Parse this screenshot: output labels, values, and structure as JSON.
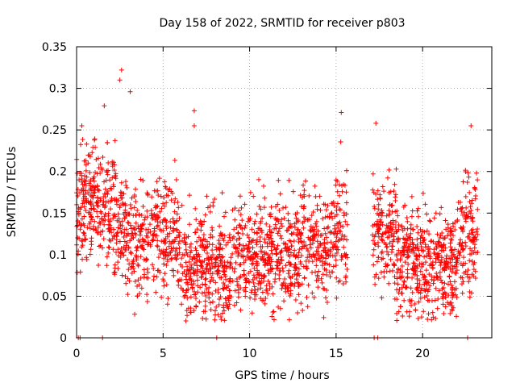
{
  "chart_data": {
    "type": "scatter",
    "title": "Day 158 of 2022, SRMTID for receiver p803",
    "xlabel": "GPS time / hours",
    "ylabel": "SRMTID / TECUs",
    "xlim": [
      0,
      24
    ],
    "ylim": [
      0,
      0.35
    ],
    "x_ticks": [
      0,
      5,
      10,
      15,
      20
    ],
    "x_tick_labels": [
      "0",
      "5",
      "10",
      "15",
      "20"
    ],
    "y_ticks": [
      0,
      0.05,
      0.1,
      0.15,
      0.2,
      0.25,
      0.3,
      0.35
    ],
    "y_tick_labels": [
      "0",
      "0.05",
      "0.1",
      "0.15",
      "0.2",
      "0.25",
      "0.3",
      "0.35"
    ],
    "grid": true,
    "marker": "plus",
    "color": "#ff0000",
    "series": [
      {
        "name": "SRMTID",
        "x_range": [
          0.0,
          23.2
        ],
        "typical_range": [
          0.05,
          0.2
        ],
        "peak_values": [
          {
            "x": 2.6,
            "y": 0.322
          },
          {
            "x": 2.5,
            "y": 0.31
          },
          {
            "x": 3.1,
            "y": 0.296
          },
          {
            "x": 1.6,
            "y": 0.279
          },
          {
            "x": 6.8,
            "y": 0.273
          },
          {
            "x": 15.3,
            "y": 0.271
          },
          {
            "x": 17.3,
            "y": 0.258
          },
          {
            "x": 22.8,
            "y": 0.255
          },
          {
            "x": 0.3,
            "y": 0.255
          },
          {
            "x": 6.8,
            "y": 0.255
          }
        ],
        "gaps": [
          [
            15.7,
            17.1
          ]
        ],
        "zero_values_x": [
          0.1,
          0.2,
          1.5,
          8.1,
          17.2,
          17.4,
          22.6
        ]
      }
    ]
  }
}
